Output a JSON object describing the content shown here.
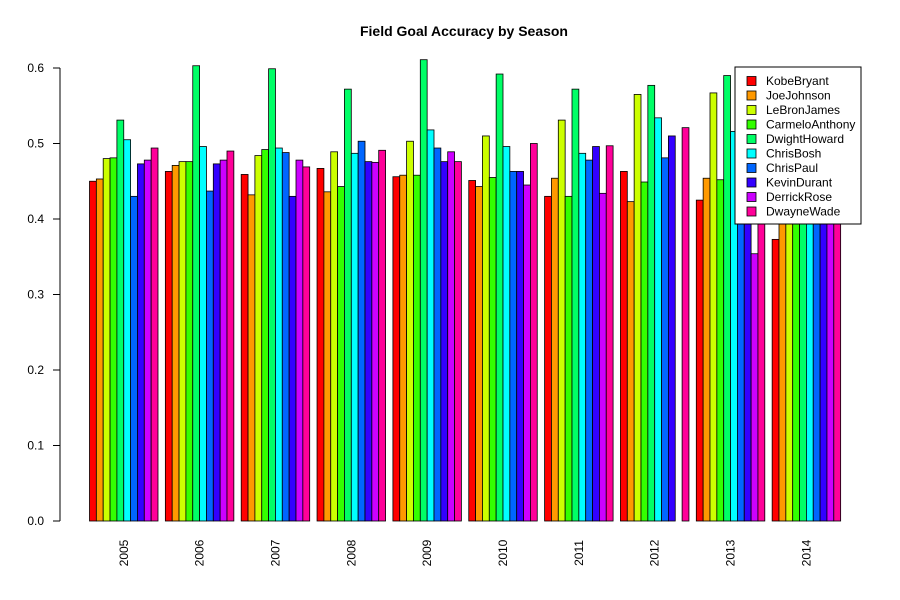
{
  "chart_data": {
    "type": "bar",
    "title": "Field Goal Accuracy by Season",
    "xlabel": "",
    "ylabel": "",
    "ylim": [
      0,
      0.6
    ],
    "yticks": [
      "0.0",
      "0.1",
      "0.2",
      "0.3",
      "0.4",
      "0.5",
      "0.6"
    ],
    "grid": false,
    "legend_position": "top-right",
    "categories": [
      "2005",
      "2006",
      "2007",
      "2008",
      "2009",
      "2010",
      "2011",
      "2012",
      "2013",
      "2014"
    ],
    "series": [
      {
        "name": "KobeBryant",
        "color": "#FF0000",
        "values": [
          0.45,
          0.463,
          0.459,
          0.467,
          0.456,
          0.451,
          0.43,
          0.463,
          0.425,
          0.373
        ]
      },
      {
        "name": "JoeJohnson",
        "color": "#FF9900",
        "values": [
          0.453,
          0.471,
          0.432,
          0.436,
          0.458,
          0.443,
          0.454,
          0.423,
          0.454,
          0.41
        ]
      },
      {
        "name": "LeBronJames",
        "color": "#CCFF00",
        "values": [
          0.48,
          0.476,
          0.484,
          0.489,
          0.503,
          0.51,
          0.531,
          0.565,
          0.567,
          0.488
        ]
      },
      {
        "name": "CarmeloAnthony",
        "color": "#33FF00",
        "values": [
          0.481,
          0.476,
          0.492,
          0.443,
          0.458,
          0.455,
          0.43,
          0.449,
          0.452,
          0.444
        ]
      },
      {
        "name": "DwightHoward",
        "color": "#00FF66",
        "values": [
          0.531,
          0.603,
          0.599,
          0.572,
          0.611,
          0.592,
          0.572,
          0.577,
          0.59,
          0.59
        ]
      },
      {
        "name": "ChrisBosh",
        "color": "#00FFFF",
        "values": [
          0.505,
          0.496,
          0.494,
          0.487,
          0.518,
          0.496,
          0.487,
          0.534,
          0.516,
          0.51
        ]
      },
      {
        "name": "ChrisPaul",
        "color": "#0066FF",
        "values": [
          0.43,
          0.437,
          0.488,
          0.503,
          0.494,
          0.463,
          0.478,
          0.481,
          0.467,
          0.485
        ]
      },
      {
        "name": "KevinDurant",
        "color": "#3300FF",
        "values": [
          0.473,
          0.473,
          0.43,
          0.476,
          0.476,
          0.463,
          0.496,
          0.51,
          0.503,
          0.503
        ]
      },
      {
        "name": "DerrickRose",
        "color": "#CC00FF",
        "values": [
          0.478,
          0.478,
          0.478,
          0.475,
          0.489,
          0.445,
          0.434,
          0.0,
          0.354,
          0.405
        ]
      },
      {
        "name": "DwayneWade",
        "color": "#FF0099",
        "values": [
          0.494,
          0.49,
          0.469,
          0.491,
          0.476,
          0.5,
          0.497,
          0.521,
          0.521,
          0.545
        ]
      }
    ]
  }
}
